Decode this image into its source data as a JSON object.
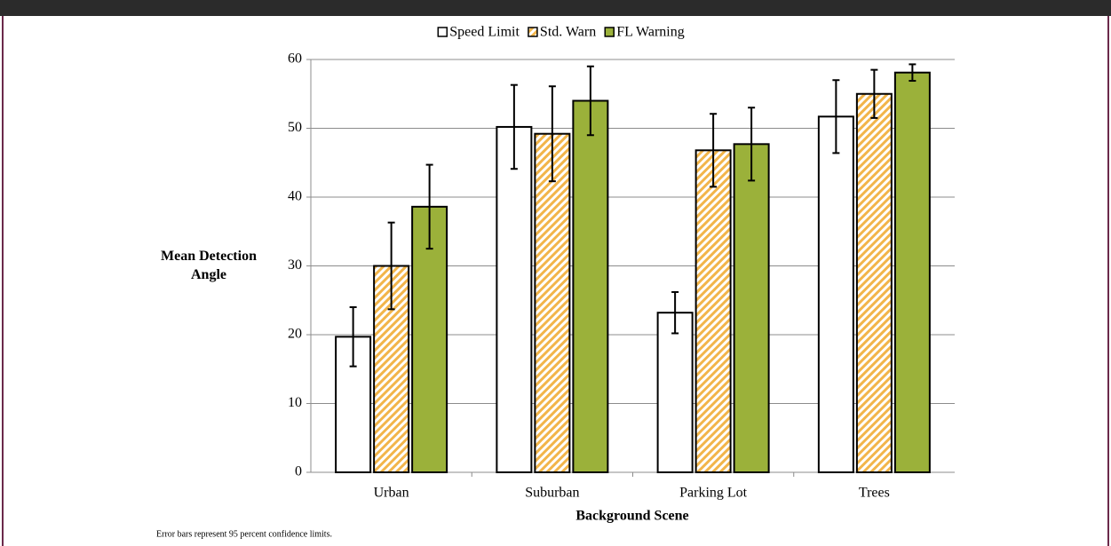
{
  "chart_data": {
    "type": "bar",
    "x_label": "Background Scene",
    "y_label": "Mean Detection Angle",
    "note": "Error bars represent 95 percent confidence limits.",
    "categories": [
      "Urban",
      "Suburban",
      "Parking Lot",
      "Trees"
    ],
    "series": [
      {
        "name": "Speed Limit",
        "color": "#ffffff",
        "values": [
          19.7,
          50.2,
          23.2,
          51.7
        ],
        "errors": [
          4.3,
          6.1,
          3.0,
          5.3
        ]
      },
      {
        "name": "Std. Warn",
        "color": "#f2b54a",
        "pattern": "hatch",
        "values": [
          30.0,
          49.2,
          46.8,
          55.0
        ],
        "errors": [
          6.3,
          6.9,
          5.3,
          3.5
        ]
      },
      {
        "name": "FL Warning",
        "color": "#9bb13a",
        "values": [
          38.6,
          54.0,
          47.7,
          58.1
        ],
        "errors": [
          6.1,
          5.0,
          5.3,
          1.2
        ]
      }
    ],
    "ylim": [
      0,
      60
    ],
    "yticks": [
      0,
      10,
      20,
      30,
      40,
      50,
      60
    ],
    "grid": true,
    "legend": "top"
  }
}
